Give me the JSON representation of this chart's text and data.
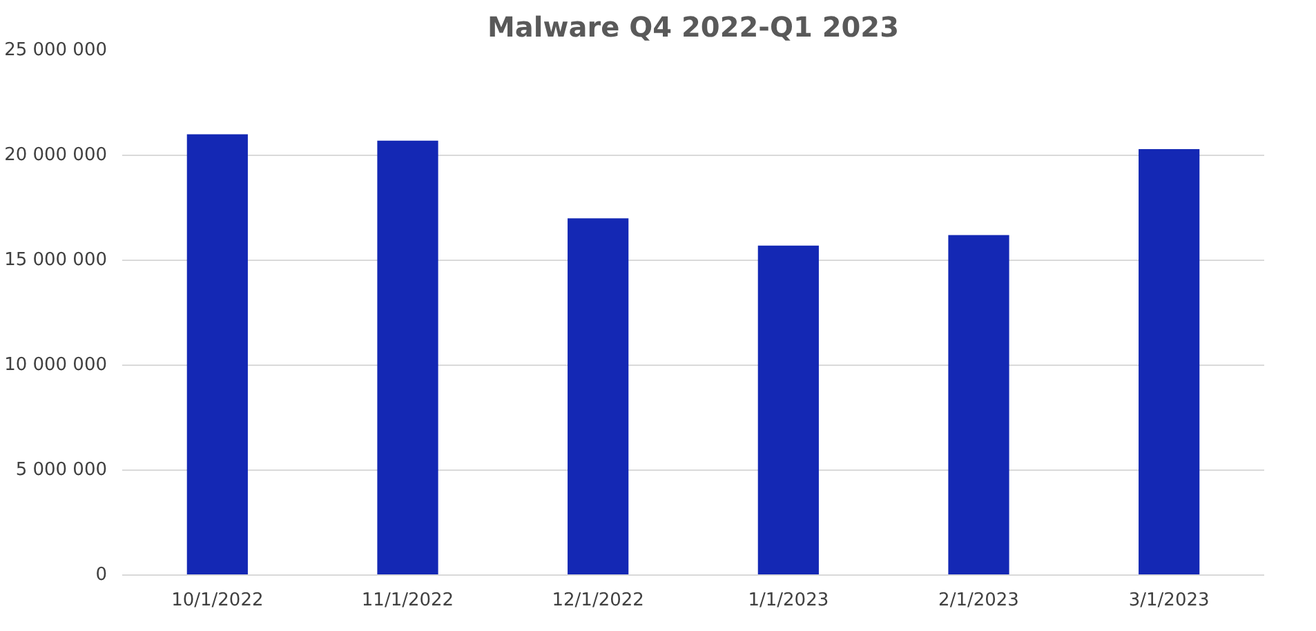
{
  "chart_data": {
    "type": "bar",
    "title": "Malware Q4 2022-Q1 2023",
    "categories": [
      "10/1/2022",
      "11/1/2022",
      "12/1/2022",
      "1/1/2023",
      "2/1/2023",
      "3/1/2023"
    ],
    "values": [
      21000000,
      20700000,
      17000000,
      15700000,
      16200000,
      20300000
    ],
    "color": "#1428b4",
    "ylim": [
      0,
      25000000
    ],
    "yticks": [
      {
        "value": 0,
        "label": "0"
      },
      {
        "value": 5000000,
        "label": "5 000 000"
      },
      {
        "value": 10000000,
        "label": "10 000 000"
      },
      {
        "value": 15000000,
        "label": "15 000 000"
      },
      {
        "value": 20000000,
        "label": "20 000 000"
      },
      {
        "value": 25000000,
        "label": "25 000 000"
      }
    ],
    "grid": "y"
  }
}
